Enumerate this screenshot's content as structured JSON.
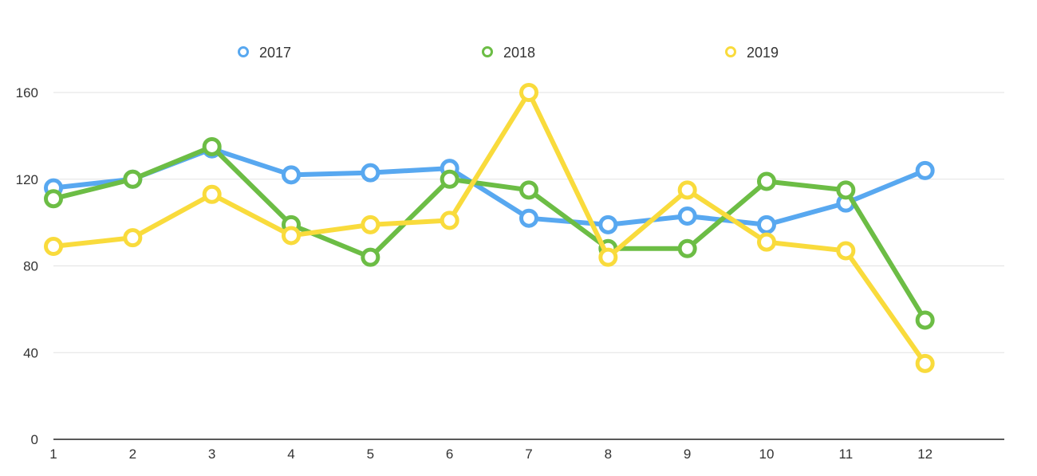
{
  "chart_data": {
    "type": "line",
    "title": "",
    "xlabel": "",
    "ylabel": "",
    "x": [
      1,
      2,
      3,
      4,
      5,
      6,
      7,
      8,
      9,
      10,
      11,
      12
    ],
    "xlim": [
      1,
      13
    ],
    "ylim": [
      0,
      160
    ],
    "yticks": [
      0,
      40,
      80,
      120,
      160
    ],
    "xtick_labels": [
      "1",
      "2",
      "3",
      "4",
      "5",
      "6",
      "7",
      "8",
      "9",
      "10",
      "11",
      "12"
    ],
    "ytick_labels": [
      "0",
      "40",
      "80",
      "120",
      "160"
    ],
    "grid": true,
    "legend_position": "top-center",
    "series": [
      {
        "name": "2017",
        "color": "#58a8f0",
        "values": [
          116,
          120,
          134,
          122,
          123,
          125,
          102,
          99,
          103,
          99,
          109,
          124
        ]
      },
      {
        "name": "2018",
        "color": "#6cbd45",
        "values": [
          111,
          120,
          135,
          99,
          84,
          120,
          115,
          88,
          88,
          119,
          115,
          55
        ]
      },
      {
        "name": "2019",
        "color": "#f9db3c",
        "values": [
          89,
          93,
          113,
          94,
          99,
          101,
          160,
          84,
          115,
          91,
          87,
          35
        ]
      }
    ]
  }
}
